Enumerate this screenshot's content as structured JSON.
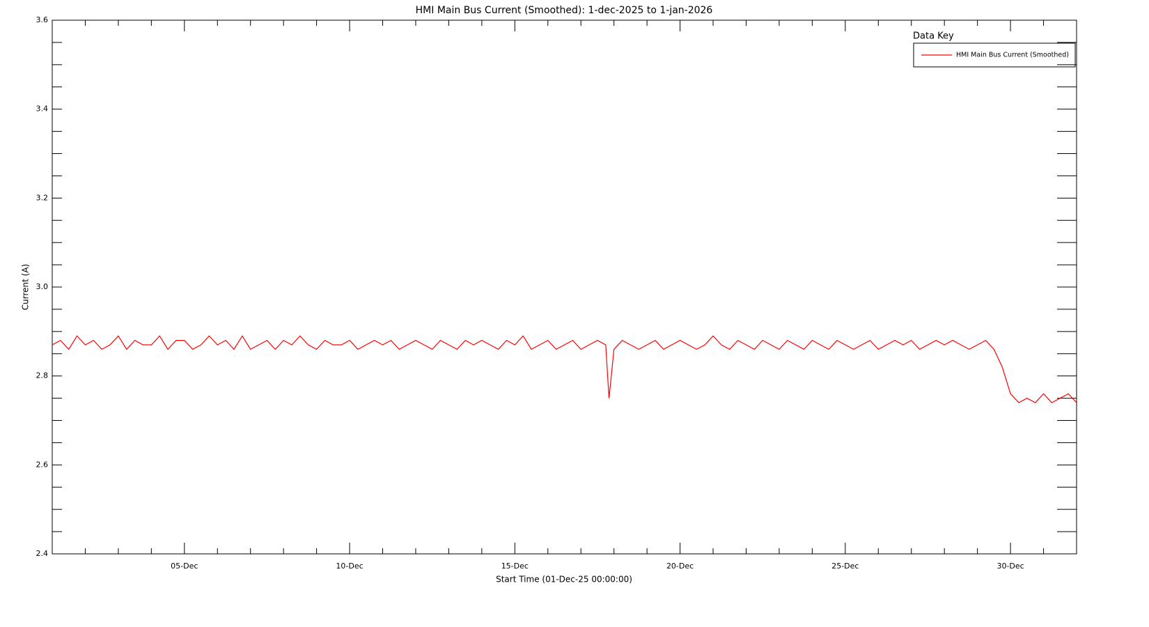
{
  "chart_data": {
    "type": "line",
    "title": "HMI Main Bus Current (Smoothed): 1-dec-2025 to 1-jan-2026",
    "xlabel": "Start Time (01-Dec-25 00:00:00)",
    "ylabel": "Current (A)",
    "legend_title": "Data Key",
    "legend": "top-right",
    "grid": false,
    "xlim": [
      0,
      31
    ],
    "xticks": [
      {
        "value": 4,
        "label": "05-Dec"
      },
      {
        "value": 9,
        "label": "10-Dec"
      },
      {
        "value": 14,
        "label": "15-Dec"
      },
      {
        "value": 19,
        "label": "20-Dec"
      },
      {
        "value": 24,
        "label": "25-Dec"
      },
      {
        "value": 29,
        "label": "30-Dec"
      }
    ],
    "xminorticks": [
      1,
      2,
      3,
      5,
      6,
      7,
      8,
      10,
      11,
      12,
      13,
      15,
      16,
      17,
      18,
      20,
      21,
      22,
      23,
      25,
      26,
      27,
      28,
      30
    ],
    "ylim": [
      2.4,
      3.6
    ],
    "yticks": [
      2.4,
      2.6,
      2.8,
      {
        "value": 3,
        "label": "3.0"
      },
      3.2,
      3.4,
      3.6
    ],
    "yminorticks": [
      2.45,
      2.5,
      2.55,
      2.65,
      2.7,
      2.75,
      2.85,
      2.9,
      2.95,
      3.05,
      3.1,
      3.15,
      3.25,
      3.3,
      3.35,
      3.45,
      3.5,
      3.55
    ],
    "x": [
      0,
      0.25,
      0.5,
      0.75,
      1,
      1.25,
      1.5,
      1.75,
      2,
      2.25,
      2.5,
      2.75,
      3,
      3.25,
      3.5,
      3.75,
      4,
      4.25,
      4.5,
      4.75,
      5,
      5.25,
      5.5,
      5.75,
      6,
      6.25,
      6.5,
      6.75,
      7,
      7.25,
      7.5,
      7.75,
      8,
      8.25,
      8.5,
      8.75,
      9,
      9.25,
      9.5,
      9.75,
      10,
      10.25,
      10.5,
      10.75,
      11,
      11.25,
      11.5,
      11.75,
      12,
      12.25,
      12.5,
      12.75,
      13,
      13.25,
      13.5,
      13.75,
      14,
      14.25,
      14.5,
      14.75,
      15,
      15.25,
      15.5,
      15.75,
      16,
      16.25,
      16.5,
      16.75,
      16.85,
      17,
      17.25,
      17.5,
      17.75,
      18,
      18.25,
      18.5,
      18.75,
      19,
      19.25,
      19.5,
      19.75,
      20,
      20.25,
      20.5,
      20.75,
      21,
      21.25,
      21.5,
      21.75,
      22,
      22.25,
      22.5,
      22.75,
      23,
      23.25,
      23.5,
      23.75,
      24,
      24.25,
      24.5,
      24.75,
      25,
      25.25,
      25.5,
      25.75,
      26,
      26.25,
      26.5,
      26.75,
      27,
      27.25,
      27.5,
      27.75,
      28,
      28.25,
      28.5,
      28.75,
      29,
      29.25,
      29.5,
      29.75,
      30,
      30.25,
      30.5,
      30.75,
      31
    ],
    "series": [
      {
        "name": "HMI Main Bus Current (Smoothed)",
        "color": "#ff0000",
        "values": [
          2.87,
          2.88,
          2.86,
          2.89,
          2.87,
          2.88,
          2.86,
          2.87,
          2.89,
          2.86,
          2.88,
          2.87,
          2.87,
          2.89,
          2.86,
          2.88,
          2.88,
          2.86,
          2.87,
          2.89,
          2.87,
          2.88,
          2.86,
          2.89,
          2.86,
          2.87,
          2.88,
          2.86,
          2.88,
          2.87,
          2.89,
          2.87,
          2.86,
          2.88,
          2.87,
          2.87,
          2.88,
          2.86,
          2.87,
          2.88,
          2.87,
          2.88,
          2.86,
          2.87,
          2.88,
          2.87,
          2.86,
          2.88,
          2.87,
          2.86,
          2.88,
          2.87,
          2.88,
          2.87,
          2.86,
          2.88,
          2.87,
          2.89,
          2.86,
          2.87,
          2.88,
          2.86,
          2.87,
          2.88,
          2.86,
          2.87,
          2.88,
          2.87,
          2.75,
          2.86,
          2.88,
          2.87,
          2.86,
          2.87,
          2.88,
          2.86,
          2.87,
          2.88,
          2.87,
          2.86,
          2.87,
          2.89,
          2.87,
          2.86,
          2.88,
          2.87,
          2.86,
          2.88,
          2.87,
          2.86,
          2.88,
          2.87,
          2.86,
          2.88,
          2.87,
          2.86,
          2.88,
          2.87,
          2.86,
          2.87,
          2.88,
          2.86,
          2.87,
          2.88,
          2.87,
          2.88,
          2.86,
          2.87,
          2.88,
          2.87,
          2.88,
          2.87,
          2.86,
          2.87,
          2.88,
          2.86,
          2.82,
          2.76,
          2.74,
          2.75,
          2.74,
          2.76,
          2.74,
          2.75,
          2.76,
          2.74
        ]
      }
    ]
  }
}
